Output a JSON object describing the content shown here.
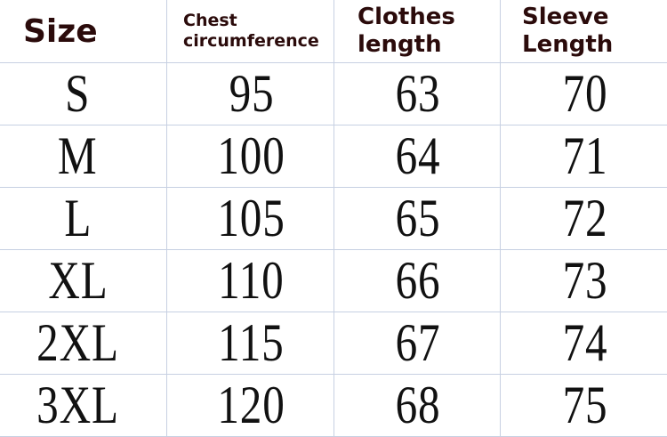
{
  "headers": {
    "size": "Size",
    "chest": [
      "Chest",
      "circumference"
    ],
    "clothes_length": [
      "Clothes",
      "length"
    ],
    "sleeve_length": [
      "Sleeve",
      "Length"
    ]
  },
  "rows": [
    {
      "size": "S",
      "chest": "95",
      "length": "63",
      "sleeve": "70"
    },
    {
      "size": "M",
      "chest": "100",
      "length": "64",
      "sleeve": "71"
    },
    {
      "size": "L",
      "chest": "105",
      "length": "65",
      "sleeve": "72"
    },
    {
      "size": "XL",
      "chest": "110",
      "length": "66",
      "sleeve": "73"
    },
    {
      "size": "2XL",
      "chest": "115",
      "length": "67",
      "sleeve": "74"
    },
    {
      "size": "3XL",
      "chest": "120",
      "length": "68",
      "sleeve": "75"
    }
  ],
  "colors": {
    "grid": "#c7d0e2",
    "header_text": "#2b0b0b",
    "body_text": "#111111"
  }
}
